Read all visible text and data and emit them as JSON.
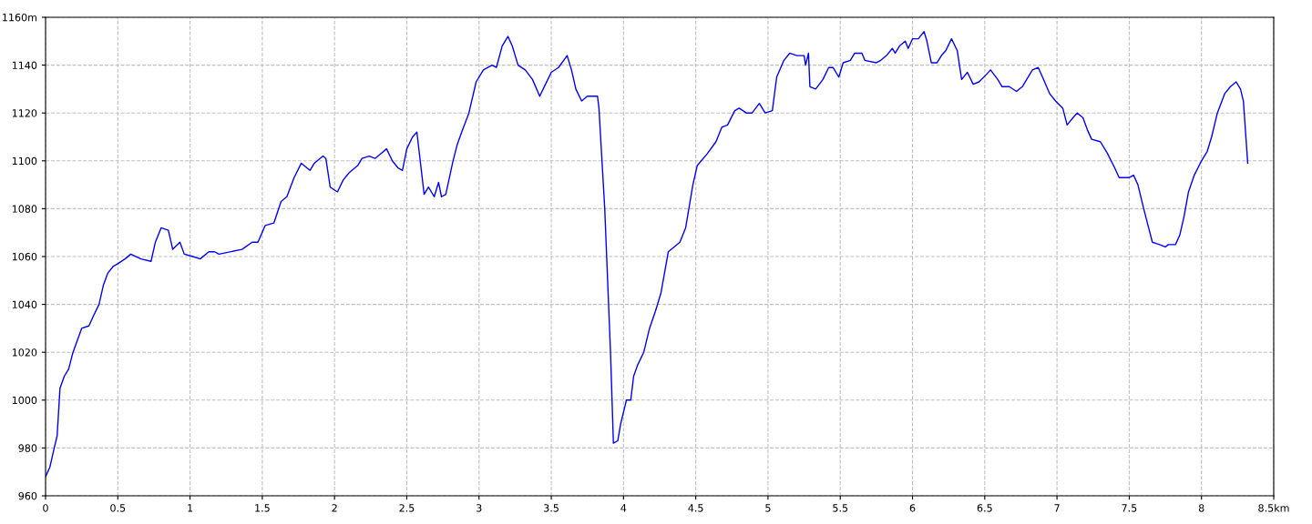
{
  "chart_data": {
    "type": "line",
    "xlim": [
      0,
      8.5
    ],
    "ylim": [
      960,
      1160
    ],
    "xticks": [
      0,
      0.5,
      1,
      1.5,
      2,
      2.5,
      3,
      3.5,
      4,
      4.5,
      5,
      5.5,
      6,
      6.5,
      7,
      7.5,
      8,
      {
        "value": 8.5,
        "label": "8.5km"
      }
    ],
    "yticks": [
      960,
      980,
      1000,
      1020,
      1040,
      1060,
      1080,
      1100,
      1120,
      1140,
      {
        "value": 1160,
        "label": "1160m"
      }
    ],
    "grid": true,
    "line_style": "solid",
    "marker": "none",
    "series": [
      {
        "color": "#0000ff",
        "x": [
          0,
          0.03,
          0.06,
          0.08,
          0.1,
          0.13,
          0.16,
          0.19,
          0.25,
          0.3,
          0.33,
          0.37,
          0.4,
          0.43,
          0.47,
          0.5,
          0.55,
          0.59,
          0.66,
          0.73,
          0.76,
          0.8,
          0.85,
          0.88,
          0.93,
          0.96,
          1.02,
          1.07,
          1.13,
          1.17,
          1.2,
          1.36,
          1.43,
          1.47,
          1.52,
          1.58,
          1.63,
          1.67,
          1.72,
          1.77,
          1.83,
          1.86,
          1.92,
          1.94,
          1.97,
          2.02,
          2.06,
          2.1,
          2.16,
          2.19,
          2.24,
          2.28,
          2.32,
          2.36,
          2.4,
          2.44,
          2.47,
          2.5,
          2.54,
          2.57,
          2.62,
          2.65,
          2.69,
          2.72,
          2.74,
          2.77,
          2.82,
          2.85,
          2.88,
          2.93,
          2.98,
          3.03,
          3.09,
          3.12,
          3.16,
          3.2,
          3.23,
          3.27,
          3.32,
          3.37,
          3.42,
          3.46,
          3.5,
          3.55,
          3.61,
          3.64,
          3.67,
          3.71,
          3.75,
          3.82,
          3.83,
          3.87,
          3.91,
          3.93,
          3.96,
          3.98,
          4.02,
          4.05,
          4.07,
          4.1,
          4.14,
          4.18,
          4.22,
          4.26,
          4.31,
          4.35,
          4.39,
          4.43,
          4.48,
          4.51,
          4.58,
          4.64,
          4.68,
          4.72,
          4.77,
          4.8,
          4.85,
          4.89,
          4.94,
          4.98,
          5.03,
          5.06,
          5.11,
          5.15,
          5.2,
          5.25,
          5.26,
          5.28,
          5.29,
          5.33,
          5.38,
          5.42,
          5.45,
          5.49,
          5.52,
          5.57,
          5.6,
          5.65,
          5.67,
          5.75,
          5.78,
          5.82,
          5.86,
          5.88,
          5.91,
          5.95,
          5.97,
          6.0,
          6.04,
          6.08,
          6.1,
          6.13,
          6.17,
          6.2,
          6.23,
          6.27,
          6.31,
          6.34,
          6.38,
          6.42,
          6.46,
          6.51,
          6.54,
          6.59,
          6.62,
          6.67,
          6.72,
          6.76,
          6.79,
          6.83,
          6.87,
          6.9,
          6.95,
          6.99,
          7.04,
          7.07,
          7.11,
          7.14,
          7.18,
          7.21,
          7.24,
          7.3,
          7.33,
          7.35,
          7.4,
          7.43,
          7.5,
          7.53,
          7.56,
          7.6,
          7.63,
          7.66,
          7.71,
          7.75,
          7.77,
          7.82,
          7.85,
          7.88,
          7.91,
          7.95,
          8.0,
          8.04,
          8.07,
          8.11,
          8.16,
          8.2,
          8.24,
          8.27,
          8.29,
          8.32
        ],
        "values": [
          968,
          972,
          980,
          985,
          1005,
          1010,
          1013,
          1020,
          1030,
          1031,
          1035,
          1040,
          1048,
          1053,
          1056,
          1057,
          1059,
          1061,
          1059,
          1058,
          1066,
          1072,
          1071,
          1063,
          1066,
          1061,
          1060,
          1059,
          1062,
          1062,
          1061,
          1063,
          1066,
          1066,
          1073,
          1074,
          1083,
          1085,
          1093,
          1099,
          1096,
          1099,
          1102,
          1101,
          1089,
          1087,
          1092,
          1095,
          1098,
          1101,
          1102,
          1101,
          1103,
          1105,
          1100,
          1097,
          1096,
          1105,
          1110,
          1112,
          1086,
          1089,
          1085,
          1091,
          1085,
          1086,
          1100,
          1107,
          1112,
          1120,
          1133,
          1138,
          1140,
          1139,
          1148,
          1152,
          1148,
          1140,
          1138,
          1134,
          1127,
          1132,
          1137,
          1139,
          1144,
          1138,
          1130,
          1125,
          1127,
          1127,
          1122,
          1080,
          1020,
          982,
          983,
          990,
          1000,
          1000,
          1010,
          1015,
          1020,
          1030,
          1037,
          1045,
          1062,
          1064,
          1066,
          1072,
          1090,
          1098,
          1103,
          1108,
          1114,
          1115,
          1121,
          1122,
          1120,
          1120,
          1124,
          1120,
          1121,
          1135,
          1142,
          1145,
          1144,
          1144,
          1140,
          1145,
          1131,
          1130,
          1134,
          1139,
          1139,
          1135,
          1141,
          1142,
          1145,
          1145,
          1142,
          1141,
          1142,
          1144,
          1147,
          1145,
          1148,
          1150,
          1147,
          1151,
          1151,
          1154,
          1150,
          1141,
          1141,
          1144,
          1146,
          1151,
          1146,
          1134,
          1137,
          1132,
          1133,
          1136,
          1138,
          1134,
          1131,
          1131,
          1129,
          1131,
          1134,
          1138,
          1139,
          1135,
          1128,
          1125,
          1122,
          1115,
          1118,
          1120,
          1118,
          1113,
          1109,
          1108,
          1105,
          1103,
          1097,
          1093,
          1093,
          1094,
          1090,
          1080,
          1073,
          1066,
          1065,
          1064,
          1065,
          1065,
          1069,
          1077,
          1087,
          1094,
          1100,
          1104,
          1110,
          1120,
          1128,
          1131,
          1133,
          1130,
          1125,
          1099
        ]
      }
    ]
  }
}
